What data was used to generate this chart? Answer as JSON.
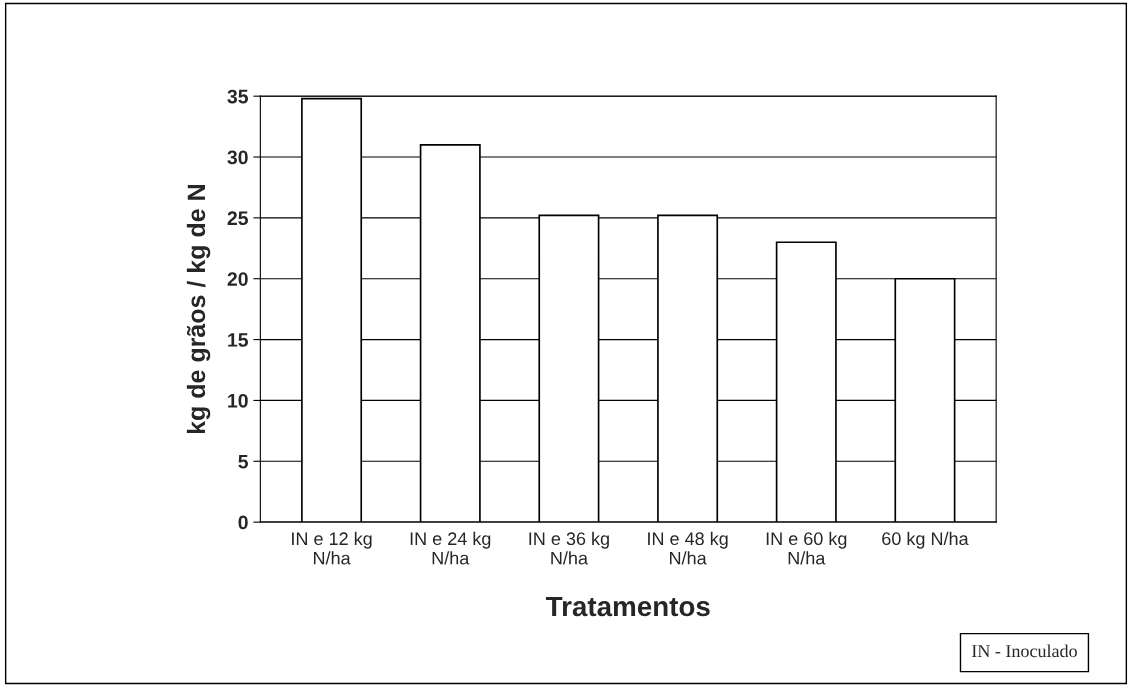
{
  "chart_data": {
    "type": "bar",
    "xlabel": "Tratamentos",
    "ylabel": "kg de grãos / kg de N",
    "categories": [
      "IN e 12 kg\nN/ha",
      "IN e 24 kg\nN/ha",
      "IN e 36 kg\nN/ha",
      "IN e 48 kg\nN/ha",
      "IN e 60 kg\nN/ha",
      "60 kg N/ha"
    ],
    "values": [
      34.8,
      31,
      25.2,
      25.2,
      23,
      20
    ],
    "color": "#ffffff",
    "ylim": [
      0,
      35
    ],
    "yticks": [
      0,
      5,
      10,
      15,
      20,
      25,
      30,
      35
    ],
    "grid": "y",
    "annotations": [
      "IN - Inoculado"
    ]
  }
}
